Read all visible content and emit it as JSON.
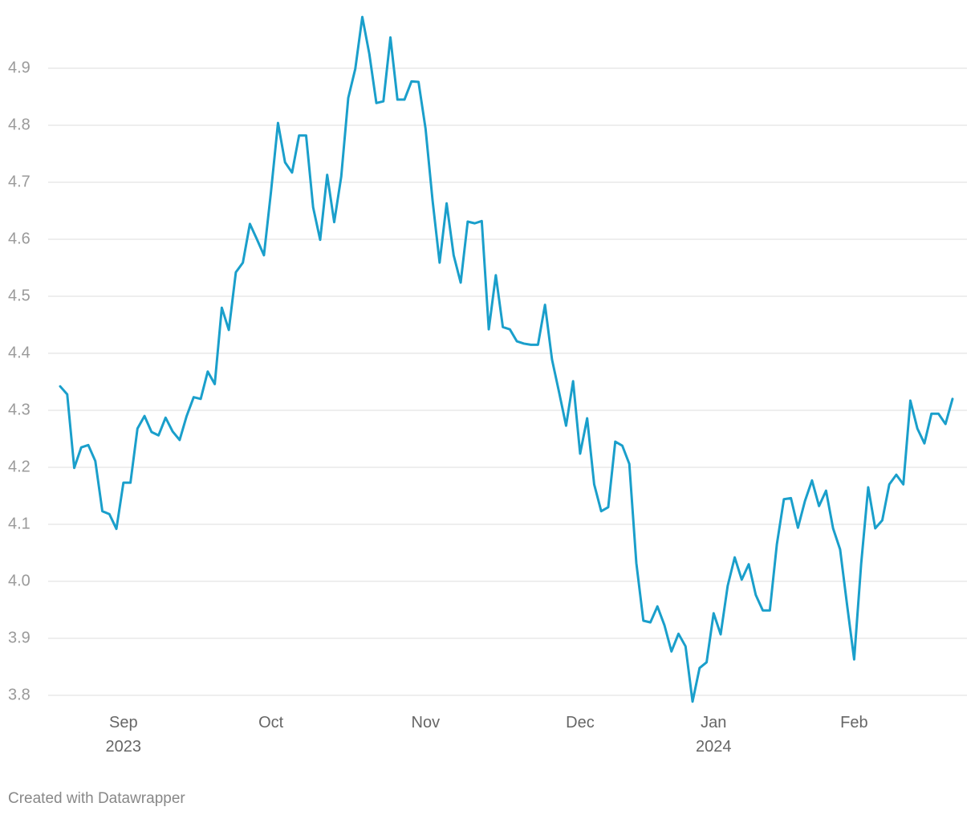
{
  "chart_data": {
    "type": "line",
    "categories": [
      null,
      null,
      null,
      null,
      null,
      null,
      null,
      null,
      null,
      "Sep 2023",
      null,
      null,
      null,
      null,
      null,
      null,
      null,
      null,
      null,
      null,
      null,
      null,
      null,
      null,
      null,
      null,
      null,
      null,
      null,
      null,
      "Oct",
      null,
      null,
      null,
      null,
      null,
      null,
      null,
      null,
      null,
      null,
      null,
      null,
      null,
      null,
      null,
      null,
      null,
      null,
      null,
      null,
      null,
      "Nov",
      null,
      null,
      null,
      null,
      null,
      null,
      null,
      null,
      null,
      null,
      null,
      null,
      null,
      null,
      null,
      null,
      null,
      null,
      null,
      null,
      null,
      "Dec",
      null,
      null,
      null,
      null,
      null,
      null,
      null,
      null,
      null,
      null,
      null,
      null,
      null,
      null,
      null,
      null,
      null,
      null,
      "Jan 2024",
      null,
      null,
      null,
      null,
      null,
      null,
      null,
      null,
      null,
      null,
      null,
      null,
      null,
      null,
      null,
      null,
      null,
      null,
      null,
      "Feb",
      null,
      null,
      null,
      null,
      null,
      null,
      null,
      null,
      null,
      null,
      null,
      null,
      null,
      null
    ],
    "series": [
      {
        "color": "#1a9fcb",
        "values": [
          4.342,
          4.328,
          4.199,
          4.235,
          4.239,
          4.211,
          4.123,
          4.118,
          4.092,
          4.173,
          4.173,
          4.268,
          4.29,
          4.262,
          4.256,
          4.287,
          4.263,
          4.248,
          4.29,
          4.323,
          4.32,
          4.368,
          4.346,
          4.48,
          4.441,
          4.542,
          4.559,
          4.627,
          4.6,
          4.572,
          4.683,
          4.804,
          4.735,
          4.717,
          4.782,
          4.782,
          4.656,
          4.599,
          4.713,
          4.63,
          4.71,
          4.848,
          4.899,
          4.99,
          4.925,
          4.839,
          4.842,
          4.954,
          4.845,
          4.845,
          4.877,
          4.876,
          4.794,
          4.668,
          4.559,
          4.663,
          4.572,
          4.524,
          4.631,
          4.628,
          4.632,
          4.442,
          4.537,
          4.446,
          4.442,
          4.421,
          4.417,
          4.415,
          4.415,
          4.485,
          4.389,
          4.332,
          4.273,
          4.351,
          4.224,
          4.286,
          4.17,
          4.123,
          4.13,
          4.245,
          4.238,
          4.206,
          4.032,
          3.931,
          3.928,
          3.956,
          3.923,
          3.877,
          3.908,
          3.886,
          3.789,
          3.848,
          3.858,
          3.944,
          3.907,
          3.992,
          4.042,
          4.003,
          4.03,
          3.976,
          3.949,
          3.949,
          4.065,
          4.144,
          4.146,
          4.094,
          4.141,
          4.177,
          4.132,
          4.159,
          4.093,
          4.056,
          3.958,
          3.863,
          4.031,
          4.165,
          4.093,
          4.107,
          4.17,
          4.187,
          4.17,
          4.317,
          4.268,
          4.242,
          4.294,
          4.294,
          4.276,
          4.32
        ]
      }
    ],
    "ylim": [
      3.8,
      5.0
    ],
    "yticks": [
      3.8,
      3.9,
      {
        "value": 4,
        "label": "4.0"
      },
      4.1,
      4.2,
      4.3,
      4.4,
      4.5,
      4.6,
      4.7,
      4.8,
      4.9
    ],
    "grid": true,
    "credit": "Created with Datawrapper"
  }
}
